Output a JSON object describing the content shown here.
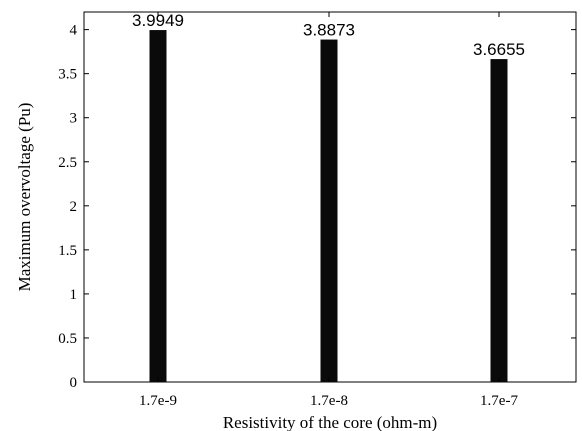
{
  "chart_data": {
    "type": "bar",
    "categories": [
      "1.7e-9",
      "1.7e-8",
      "1.7e-7"
    ],
    "values": [
      3.9949,
      3.8873,
      3.6655
    ],
    "data_labels": [
      "3.9949",
      "3.8873",
      "3.6655"
    ],
    "ylim": [
      0,
      4.2
    ],
    "yticks": [
      0,
      0.5,
      1,
      1.5,
      2,
      2.5,
      3,
      3.5,
      4
    ],
    "ytick_labels": [
      "0",
      "0.5",
      "1",
      "1.5",
      "2",
      "2.5",
      "3",
      "3.5",
      "4"
    ],
    "xlabel": "Resistivity of the core (ohm-m)",
    "ylabel": "Maximum overvoltage (Pu)",
    "title": "",
    "grid": false,
    "bar_color": "#0a0a0a"
  }
}
